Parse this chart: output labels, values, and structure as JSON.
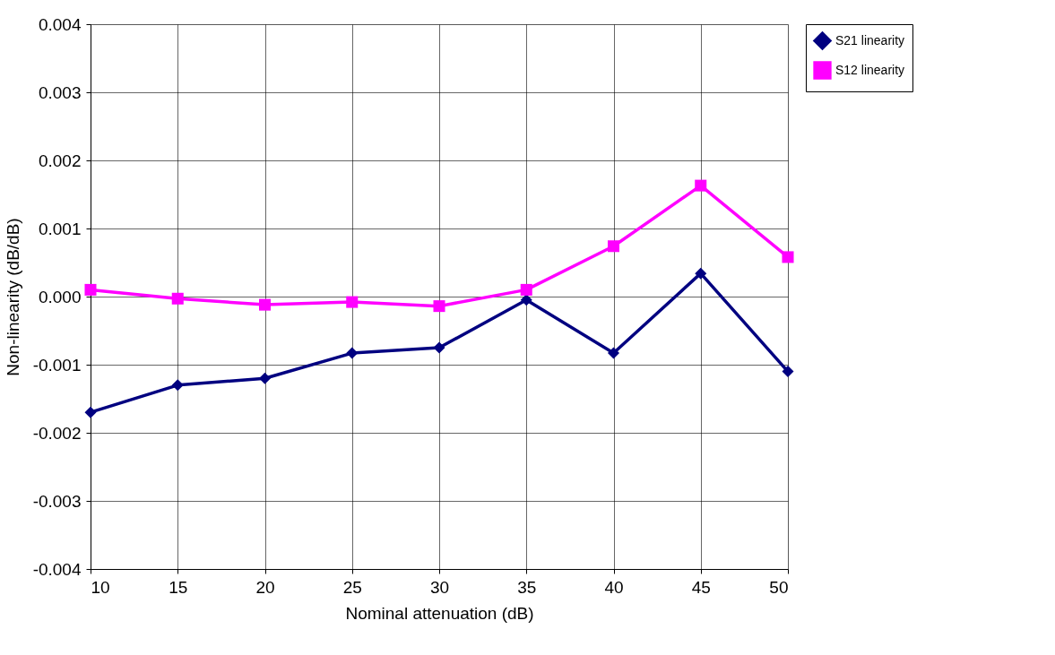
{
  "chart_data": {
    "type": "line",
    "xlabel": "Nominal attenuation (dB)",
    "ylabel": "Non-linearity (dB/dB)",
    "x": [
      10,
      15,
      20,
      25,
      30,
      35,
      40,
      45,
      50
    ],
    "xlim": [
      10,
      50
    ],
    "xticks": [
      10,
      15,
      20,
      25,
      30,
      35,
      40,
      45,
      50
    ],
    "ylim": [
      -0.004,
      0.004
    ],
    "yticks": [
      -0.004,
      -0.003,
      -0.002,
      -0.001,
      {
        "value": 0,
        "label": "0.000"
      },
      0.001,
      0.002,
      0.003,
      0.004
    ],
    "grid": true,
    "legend": "right",
    "line_style": "solid",
    "series": [
      {
        "name": "S21 linearity",
        "color": "#000080",
        "marker": "diamond",
        "values": [
          -0.0017,
          -0.0013,
          -0.0012,
          -0.00083,
          -0.00075,
          -5e-05,
          -0.00083,
          0.00034,
          -0.0011
        ]
      },
      {
        "name": "S12 linearity",
        "color": "#ff00ff",
        "marker": "square",
        "values": [
          0.0001,
          -3e-05,
          -0.00012,
          -8e-05,
          -0.00014,
          0.0001,
          0.00074,
          0.00163,
          0.00058
        ]
      }
    ]
  }
}
